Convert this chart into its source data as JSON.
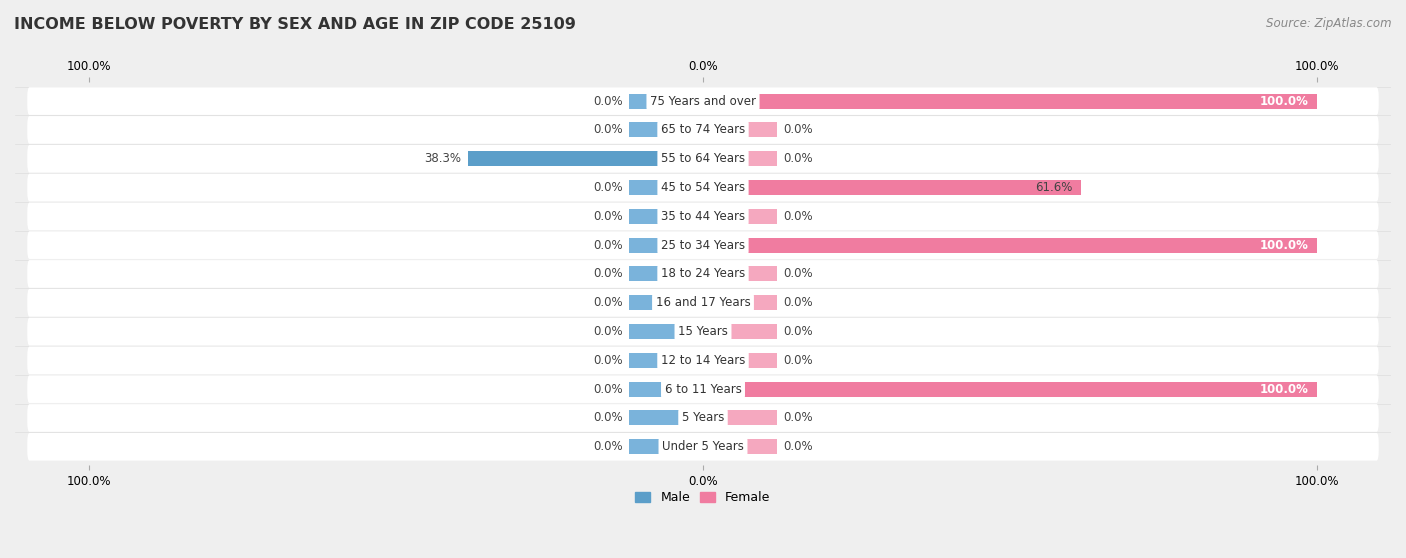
{
  "title": "INCOME BELOW POVERTY BY SEX AND AGE IN ZIP CODE 25109",
  "source": "Source: ZipAtlas.com",
  "categories": [
    "Under 5 Years",
    "5 Years",
    "6 to 11 Years",
    "12 to 14 Years",
    "15 Years",
    "16 and 17 Years",
    "18 to 24 Years",
    "25 to 34 Years",
    "35 to 44 Years",
    "45 to 54 Years",
    "55 to 64 Years",
    "65 to 74 Years",
    "75 Years and over"
  ],
  "male_values": [
    0.0,
    0.0,
    0.0,
    0.0,
    0.0,
    0.0,
    0.0,
    0.0,
    0.0,
    0.0,
    38.3,
    0.0,
    0.0
  ],
  "female_values": [
    0.0,
    0.0,
    100.0,
    0.0,
    0.0,
    0.0,
    0.0,
    100.0,
    0.0,
    61.6,
    0.0,
    0.0,
    100.0
  ],
  "male_color": "#7ab3db",
  "male_color_dark": "#5b9ec9",
  "female_color": "#f07ca0",
  "female_color_light": "#f5a8bf",
  "background_color": "#efefef",
  "row_bg_color": "#ffffff",
  "title_fontsize": 11.5,
  "source_fontsize": 8.5,
  "label_fontsize": 8.5,
  "value_fontsize": 8.5,
  "bar_height": 0.52,
  "max_value": 100.0,
  "stub_value": 12.0
}
